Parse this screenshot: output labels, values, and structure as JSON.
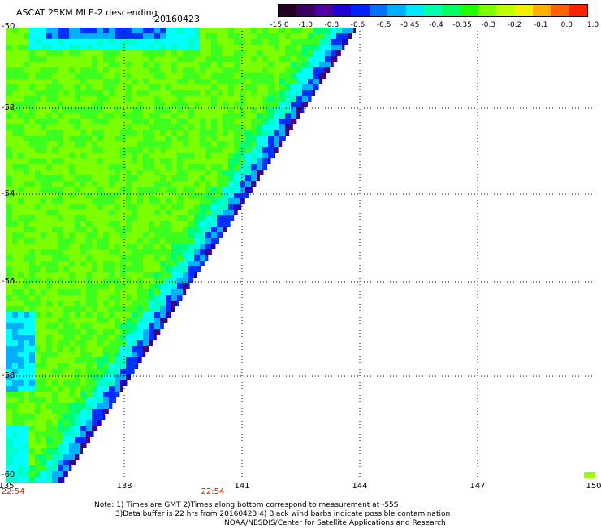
{
  "header": {
    "title": "ASCAT 25KM MLE-2 descending",
    "date": "20160423"
  },
  "colorbar": {
    "colors": [
      "#220022",
      "#3a0060",
      "#5000a0",
      "#2000d0",
      "#0020ff",
      "#0070ff",
      "#00b0ff",
      "#00e8ff",
      "#00ffb0",
      "#00ff60",
      "#20ff00",
      "#80ff00",
      "#c0ff00",
      "#f0f000",
      "#ffb000",
      "#ff6000",
      "#ff2000"
    ],
    "labels": [
      "-15.0",
      "-1.0",
      "-0.8",
      "-0.6",
      "-0.5",
      "-0.45",
      "-0.4",
      "-0.35",
      "-0.3",
      "-0.2",
      "-0.1",
      "0.0",
      "1.0"
    ]
  },
  "axes": {
    "y_labels": [
      "-50",
      "-52",
      "-54",
      "-56",
      "-58",
      "-60"
    ],
    "x_labels": [
      "135",
      "138",
      "141",
      "144",
      "147",
      "150"
    ],
    "times": [
      "22:54",
      "22:54"
    ]
  },
  "note": {
    "line1": "Note: 1) Times are GMT 2)Times along bottom correspond to measurement at -55S",
    "line2": "3)Data buffer is 22 hrs from 20160423 4) Black wind barbs indicate possible contamination",
    "line3": "NOAA/NESDIS/Center for Satellite Applications and Research"
  }
}
